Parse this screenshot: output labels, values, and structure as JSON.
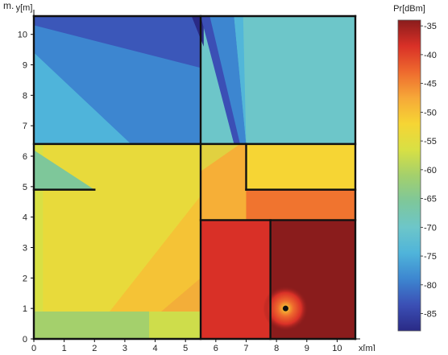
{
  "corner_label": "m.",
  "chart_data": {
    "type": "heatmap",
    "title": "",
    "xlabel": "x[m]",
    "ylabel": "y[m]",
    "xlim": [
      0,
      10.6
    ],
    "ylim": [
      0,
      10.6
    ],
    "x_ticks": [
      "0",
      "1",
      "2",
      "3",
      "4",
      "5",
      "6",
      "7",
      "8",
      "9",
      "10"
    ],
    "y_ticks": [
      "0",
      "1",
      "2",
      "3",
      "4",
      "5",
      "6",
      "7",
      "8",
      "9",
      "10"
    ],
    "transmitter": {
      "x": 8.3,
      "y": 1.0
    },
    "colorbar": {
      "label": "Pr[dBm]",
      "range": [
        -88,
        -34
      ],
      "ticks": [
        "-35",
        "-40",
        "-45",
        "-50",
        "-55",
        "-60",
        "-65",
        "-70",
        "-75",
        "-80",
        "-85"
      ],
      "colors": [
        "#2a2a86",
        "#3b4fb5",
        "#3d86d0",
        "#4fb4da",
        "#6dc6c9",
        "#7ec79a",
        "#a4d06c",
        "#d8e044",
        "#f6d534",
        "#f6a838",
        "#ee6a2e",
        "#d93027",
        "#8a1c1c"
      ]
    },
    "walls": [
      {
        "x1": 0,
        "y1": 0,
        "x2": 10.6,
        "y2": 0
      },
      {
        "x1": 10.6,
        "y1": 0,
        "x2": 10.6,
        "y2": 10.6
      },
      {
        "x1": 10.6,
        "y1": 10.6,
        "x2": 0,
        "y2": 10.6
      },
      {
        "x1": 0,
        "y1": 10.6,
        "x2": 0,
        "y2": 0
      },
      {
        "x1": 0,
        "y1": 6.4,
        "x2": 10.6,
        "y2": 6.4
      },
      {
        "x1": 5.5,
        "y1": 0,
        "x2": 5.5,
        "y2": 10.6
      },
      {
        "x1": 0,
        "y1": 4.9,
        "x2": 2.0,
        "y2": 4.9
      },
      {
        "x1": 5.5,
        "y1": 3.9,
        "x2": 10.6,
        "y2": 3.9
      },
      {
        "x1": 7.8,
        "y1": 0,
        "x2": 7.8,
        "y2": 3.9
      },
      {
        "x1": 7.0,
        "y1": 6.4,
        "x2": 7.0,
        "y2": 4.9
      },
      {
        "x1": 7.0,
        "y1": 4.9,
        "x2": 10.6,
        "y2": 4.9
      }
    ],
    "regions": [
      {
        "name": "upper-left-room",
        "base": "#4fb4da",
        "rect": [
          0,
          6.4,
          5.5,
          10.6
        ]
      },
      {
        "name": "upper-right-room",
        "base": "#6dc6c9",
        "rect": [
          5.5,
          6.4,
          10.6,
          10.6
        ]
      },
      {
        "name": "left-room",
        "base": "#d8e044",
        "rect": [
          0,
          0.9,
          5.5,
          6.4
        ]
      },
      {
        "name": "bottom-strip",
        "base": "#a4d06c",
        "rect": [
          0,
          0,
          5.5,
          0.9
        ]
      },
      {
        "name": "hallway",
        "base": "#f6d534",
        "rect": [
          5.5,
          3.9,
          10.6,
          6.4
        ]
      },
      {
        "name": "lower-middle-room",
        "base": "#d93027",
        "rect": [
          5.5,
          0,
          7.8,
          3.9
        ]
      },
      {
        "name": "transmitter-room",
        "base": "#8a1c1c",
        "rect": [
          7.8,
          0,
          10.6,
          3.9
        ]
      }
    ]
  }
}
